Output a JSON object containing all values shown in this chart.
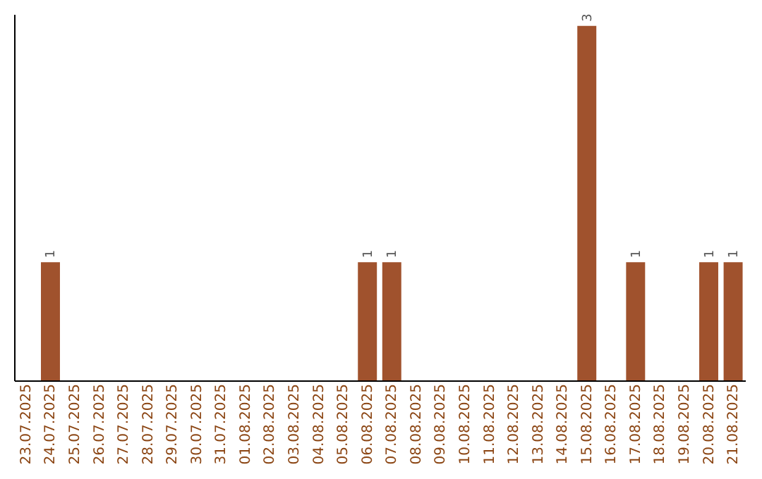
{
  "chart_data": {
    "type": "bar",
    "categories": [
      "23.07.2025",
      "24.07.2025",
      "25.07.2025",
      "26.07.2025",
      "27.07.2025",
      "28.07.2025",
      "29.07.2025",
      "30.07.2025",
      "31.07.2025",
      "01.08.2025",
      "02.08.2025",
      "03.08.2025",
      "04.08.2025",
      "05.08.2025",
      "06.08.2025",
      "07.08.2025",
      "08.08.2025",
      "09.08.2025",
      "10.08.2025",
      "11.08.2025",
      "12.08.2025",
      "13.08.2025",
      "14.08.2025",
      "15.08.2025",
      "16.08.2025",
      "17.08.2025",
      "18.08.2025",
      "19.08.2025",
      "20.08.2025",
      "21.08.2025"
    ],
    "values": [
      0,
      1,
      0,
      0,
      0,
      0,
      0,
      0,
      0,
      0,
      0,
      0,
      0,
      0,
      1,
      1,
      0,
      0,
      0,
      0,
      0,
      0,
      0,
      3,
      0,
      1,
      0,
      0,
      1,
      1
    ],
    "value_labels": [
      null,
      "1",
      null,
      null,
      null,
      null,
      null,
      null,
      null,
      null,
      null,
      null,
      null,
      null,
      "1",
      "1",
      null,
      null,
      null,
      null,
      null,
      null,
      null,
      "3",
      null,
      "1",
      null,
      null,
      "1",
      "1"
    ],
    "color": "#a0522d",
    "ylim": [
      0,
      3.1
    ],
    "tick_labels": "x"
  }
}
